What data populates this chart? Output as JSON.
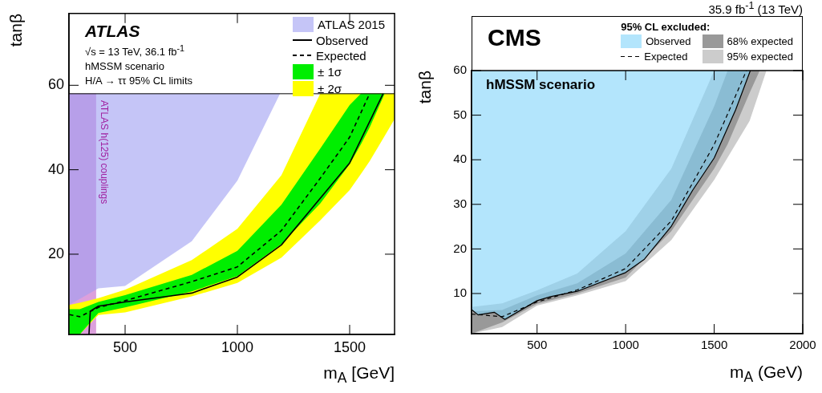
{
  "chart_data": [
    {
      "type": "line",
      "xlim": [
        250,
        1700
      ],
      "xticks": [
        500,
        1000,
        1500
      ],
      "ylim": [
        1,
        77
      ],
      "yticks": [
        20,
        40,
        60
      ],
      "xlabel": "m$_{A}$ [GeV]",
      "ylabel": "tanβ",
      "grid": false,
      "legend": "top right",
      "annotations": [
        "ATLAS",
        "√s = 13 TeV, 36.1 fb$^{-1}$",
        "hMSSM scenario",
        "H/A → ττ 95% CL limits"
      ],
      "ref_lines": [
        {
          "axis": "y",
          "value": 58,
          "color": "#000000"
        }
      ],
      "bands": [
        {
          "axis": "x",
          "from": 250,
          "to": 371,
          "label": "ATLAS h(125) couplings",
          "color": "#dca0dc"
        }
      ],
      "series": [
        {
          "name": "ATLAS 2015",
          "color": "#c5c5f7",
          "x": [
            250,
            381,
            500,
            797,
            1000,
            1190
          ],
          "values": [
            null,
            null,
            null,
            null,
            null,
            null
          ],
          "lower": [
            8.0,
            11.9,
            12.5,
            23.1,
            37.4,
            58
          ],
          "upper": [
            58,
            58,
            58,
            58,
            58,
            58
          ]
        },
        {
          "name": "Observed",
          "color": "#000000",
          "x": [
            339,
            345,
            381,
            500,
            702,
            797,
            1000,
            1196,
            1500,
            1649
          ],
          "values": [
            1,
            6.5,
            7.7,
            8.7,
            10.1,
            10.8,
            14.6,
            22.2,
            41.6,
            58
          ]
        },
        {
          "name": "Expected",
          "line_style": "dashed",
          "color": "#000000",
          "x": [
            252,
            298,
            381,
            500,
            797,
            1000,
            1196,
            1369,
            1500,
            1550,
            1589
          ],
          "values": [
            5.7,
            5.2,
            7.4,
            9.0,
            13.5,
            17.0,
            25.6,
            38,
            47.7,
            53.5,
            58
          ]
        },
        {
          "name": "± 1σ",
          "color": "#00ee00",
          "x": [
            250,
            298,
            381,
            500,
            797,
            1000,
            1196,
            1369,
            1500,
            1550,
            1589,
            1656
          ],
          "values": [
            null,
            null,
            null,
            null,
            null,
            null,
            null,
            null,
            null,
            null,
            null,
            null
          ],
          "lower": [
            1,
            1,
            6.1,
            7.4,
            11.2,
            14.8,
            22.4,
            32,
            41.3,
            46,
            50,
            58
          ],
          "upper": [
            7.0,
            7.0,
            8.7,
            10.3,
            15.1,
            20.8,
            31.7,
            45,
            55.3,
            58,
            58,
            58
          ]
        },
        {
          "name": "± 2σ",
          "color": "#ffff00",
          "x": [
            250,
            298,
            381,
            500,
            797,
            1000,
            1196,
            1369,
            1500,
            1550,
            1589,
            1656,
            1700
          ],
          "values": [
            null,
            null,
            null,
            null,
            null,
            null,
            null,
            null,
            null,
            null,
            null,
            null,
            null
          ],
          "lower": [
            1,
            1,
            5.6,
            6.2,
            10.0,
            13.2,
            19.2,
            28,
            35.2,
            39,
            42,
            48,
            52
          ],
          "upper": [
            8.0,
            8.5,
            9.6,
            11.6,
            18.6,
            26,
            38.7,
            58,
            58,
            58,
            58,
            58,
            58
          ]
        }
      ]
    },
    {
      "type": "line",
      "title": "35.9 fb$^{-1}$ (13 TeV)",
      "xlim": [
        130,
        2000
      ],
      "xticks": [
        500,
        1000,
        1500,
        2000
      ],
      "ylim": [
        1,
        60
      ],
      "yticks": [
        10,
        20,
        30,
        40,
        50,
        60
      ],
      "xlabel": "m$_{A}$ (GeV)",
      "ylabel": "tanβ",
      "grid": false,
      "legend": "top right",
      "legend_title": "95% CL excluded:",
      "annotations": [
        "CMS",
        "hMSSM scenario"
      ],
      "series": [
        {
          "name": "Observed",
          "color": "#b3e5fc",
          "x": [
            130,
            167,
            258,
            318,
            500,
            576,
            727,
            1000,
            1106,
            1258,
            1379,
            1500,
            1621,
            1704
          ],
          "values": [
            null,
            null,
            null,
            null,
            null,
            null,
            null,
            null,
            null,
            null,
            null,
            null,
            null,
            null
          ],
          "lower": [
            6.4,
            5.2,
            5.8,
            4.2,
            8.4,
            9.3,
            10.5,
            14.7,
            17.7,
            25.1,
            33.2,
            40.4,
            51.2,
            60
          ],
          "upper": [
            60,
            60,
            60,
            60,
            60,
            60,
            60,
            60,
            60,
            60,
            60,
            60,
            60,
            60
          ]
        },
        {
          "name": "68% expected",
          "color": "#999999",
          "x": [
            130,
            303,
            500,
            727,
            1000,
            1258,
            1500,
            1576,
            1700,
            1757
          ],
          "values": [
            null,
            null,
            null,
            null,
            null,
            null,
            null,
            null,
            null,
            null
          ],
          "lower": [
            1,
            3.5,
            7.7,
            10,
            13.6,
            24,
            38,
            43.5,
            55,
            60
          ],
          "upper": [
            6,
            6.3,
            9.6,
            12.3,
            19,
            31,
            52,
            60,
            60,
            60
          ]
        },
        {
          "name": "Expected",
          "line_style": "dashed",
          "color": "#000000",
          "x": [
            130,
            303,
            500,
            727,
            1000,
            1258,
            1500,
            1606,
            1682
          ],
          "values": [
            5.4,
            4.8,
            8.1,
            10.8,
            15.6,
            26.3,
            43.4,
            53,
            60
          ]
        },
        {
          "name": "95% expected",
          "color": "#cccccc",
          "x": [
            130,
            303,
            500,
            727,
            1000,
            1258,
            1500,
            1700,
            1795
          ],
          "values": [
            null,
            null,
            null,
            null,
            null,
            null,
            null,
            null,
            null
          ],
          "lower": [
            1,
            2.5,
            7.3,
            9.6,
            12.8,
            22,
            35.5,
            48.7,
            60
          ],
          "upper": [
            7,
            7.8,
            10.7,
            14.5,
            24,
            38,
            60,
            60,
            60
          ]
        },
        {
          "color": "#000000",
          "x": [
            130,
            167,
            258,
            318,
            500,
            576,
            727,
            1000,
            1106,
            1258,
            1379,
            1500,
            1621,
            1704
          ],
          "values": [
            6.4,
            5.2,
            5.8,
            4.2,
            8.4,
            9.3,
            10.5,
            14.7,
            17.7,
            25.1,
            33.2,
            40.4,
            51.2,
            60
          ]
        }
      ]
    }
  ]
}
